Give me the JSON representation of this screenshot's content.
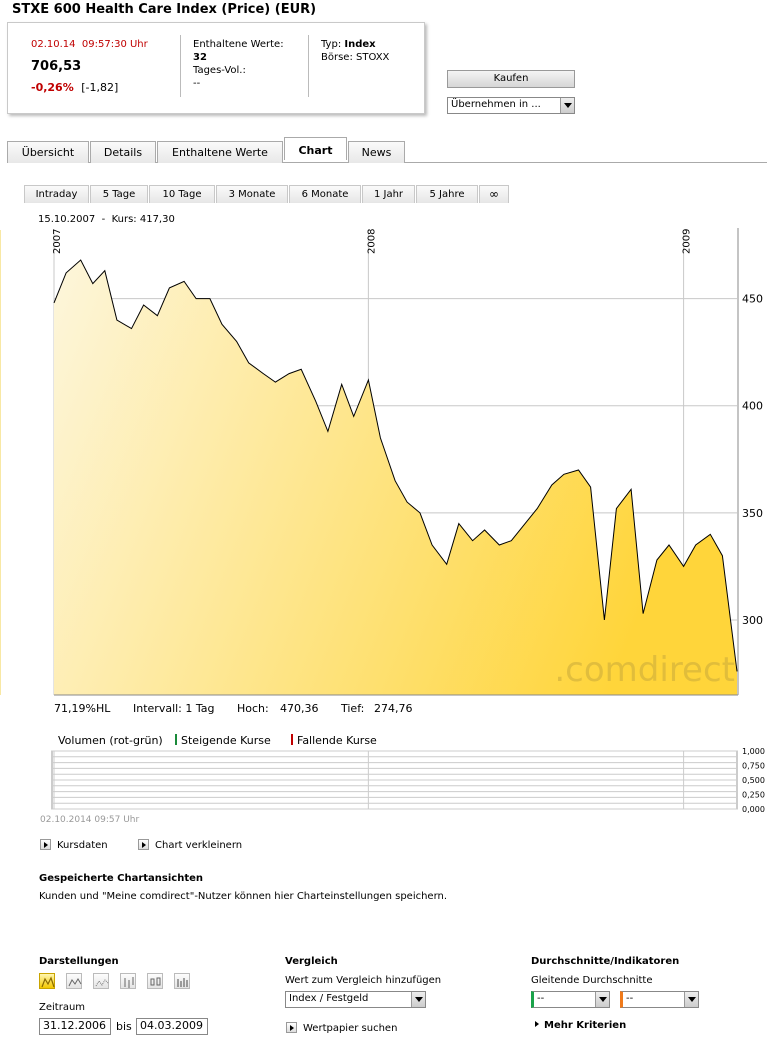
{
  "title": "STXE 600 Health Care Index (Price) (EUR)",
  "quote": {
    "datetime": "02.10.14  09:57:30 Uhr",
    "price": "706,53",
    "change_pct": "-0,26%",
    "change_abs": "[-1,82]",
    "constituents_label": "Enthaltene Werte:",
    "constituents_value": "32",
    "volume_label": "Tages-Vol.:",
    "volume_value": "--",
    "type_label": "Typ:",
    "type_value": "Index",
    "exchange_label": "Börse:",
    "exchange_value": "STOXX"
  },
  "actions": {
    "buy_label": "Kaufen",
    "adopt_select": "Übernehmen in ..."
  },
  "tabs": [
    {
      "label": "Übersicht"
    },
    {
      "label": "Details"
    },
    {
      "label": "Enthaltene Werte"
    },
    {
      "label": "Chart",
      "active": true
    },
    {
      "label": "News"
    }
  ],
  "period_tabs": [
    {
      "label": "Intraday"
    },
    {
      "label": "5 Tage"
    },
    {
      "label": "10 Tage"
    },
    {
      "label": "3 Monate"
    },
    {
      "label": "6 Monate"
    },
    {
      "label": "1 Jahr"
    },
    {
      "label": "5 Jahre"
    },
    {
      "label": "∞"
    }
  ],
  "chart_data": {
    "type": "area",
    "cursor_readout": "15.10.2007  -  Kurs: 417,30",
    "watermark": ".comdirect",
    "x_labels": [
      "2007",
      "2008",
      "2009"
    ],
    "y_ticks": [
      300,
      350,
      400,
      450
    ],
    "ylim": [
      265,
      482
    ],
    "cursor_date": "15.10.2007",
    "fill_colors": [
      "#fdf6dc",
      "#ffd53a"
    ],
    "line_color": "#000000",
    "grid": true,
    "x": [
      "2007-01-01",
      "2007-01-15",
      "2007-02-01",
      "2007-02-15",
      "2007-03-01",
      "2007-03-15",
      "2007-04-01",
      "2007-04-15",
      "2007-05-01",
      "2007-05-15",
      "2007-06-01",
      "2007-06-15",
      "2007-07-01",
      "2007-07-15",
      "2007-08-01",
      "2007-08-15",
      "2007-09-01",
      "2007-09-15",
      "2007-10-01",
      "2007-10-15",
      "2007-11-01",
      "2007-11-15",
      "2007-12-01",
      "2007-12-15",
      "2008-01-01",
      "2008-01-15",
      "2008-02-01",
      "2008-02-15",
      "2008-03-01",
      "2008-03-15",
      "2008-04-01",
      "2008-04-15",
      "2008-05-01",
      "2008-05-15",
      "2008-06-01",
      "2008-06-15",
      "2008-07-01",
      "2008-07-15",
      "2008-08-01",
      "2008-08-15",
      "2008-09-01",
      "2008-09-15",
      "2008-10-01",
      "2008-10-15",
      "2008-11-01",
      "2008-11-15",
      "2008-12-01",
      "2008-12-15",
      "2009-01-01",
      "2009-01-15",
      "2009-02-01",
      "2009-02-15",
      "2009-03-04"
    ],
    "values": [
      448,
      462,
      468,
      457,
      463,
      440,
      436,
      447,
      442,
      455,
      458,
      450,
      450,
      438,
      430,
      420,
      415,
      411,
      415,
      417,
      402,
      388,
      410,
      395,
      412,
      385,
      365,
      355,
      350,
      335,
      326,
      345,
      337,
      342,
      335,
      337,
      345,
      352,
      363,
      368,
      370,
      362,
      300,
      352,
      361,
      303,
      328,
      335,
      325,
      335,
      340,
      330,
      276
    ]
  },
  "stats": {
    "hl": "71,19%HL",
    "interval": "Intervall: 1 Tag",
    "high_label": "Hoch:",
    "high_value": "470,36",
    "low_label": "Tief:",
    "low_value": "274,76"
  },
  "volume": {
    "title": "Volumen (rot-grün)",
    "rising": "Steigende Kurse",
    "falling": "Fallende Kurse",
    "rising_color": "#1a8a3a",
    "falling_color": "#c00000",
    "y_ticks": [
      "1,000",
      "0,750",
      "0,500",
      "0,250",
      "0,000"
    ],
    "date": "02.10.2014 09:57 Uhr"
  },
  "links": {
    "kursdaten": "Kursdaten",
    "shrink": "Chart verkleinern"
  },
  "saved": {
    "title": "Gespeicherte Chartansichten",
    "text": "Kunden und \"Meine comdirect\"-Nutzer können hier Charteinstellungen speichern."
  },
  "darstellungen": {
    "title": "Darstellungen",
    "icons": [
      "mountain-chart-icon",
      "line-chart-icon",
      "point-chart-icon",
      "ohlc-chart-icon",
      "candle-chart-icon",
      "bar-volume-icon"
    ],
    "zeitraum_label": "Zeitraum",
    "from": "31.12.2006",
    "bis": "bis",
    "to": "04.03.2009"
  },
  "vergleich": {
    "title": "Vergleich",
    "add_label": "Wert zum Vergleich hinzufügen",
    "select": "Index / Festgeld",
    "search": "Wertpapier suchen"
  },
  "indikatoren": {
    "title": "Durchschnitte/Indikatoren",
    "ma_label": "Gleitende Durchschnitte",
    "ma1": "--",
    "ma2": "--",
    "ma1_color": "#1aa34a",
    "ma2_color": "#f07a1a",
    "more": "Mehr Kriterien"
  }
}
